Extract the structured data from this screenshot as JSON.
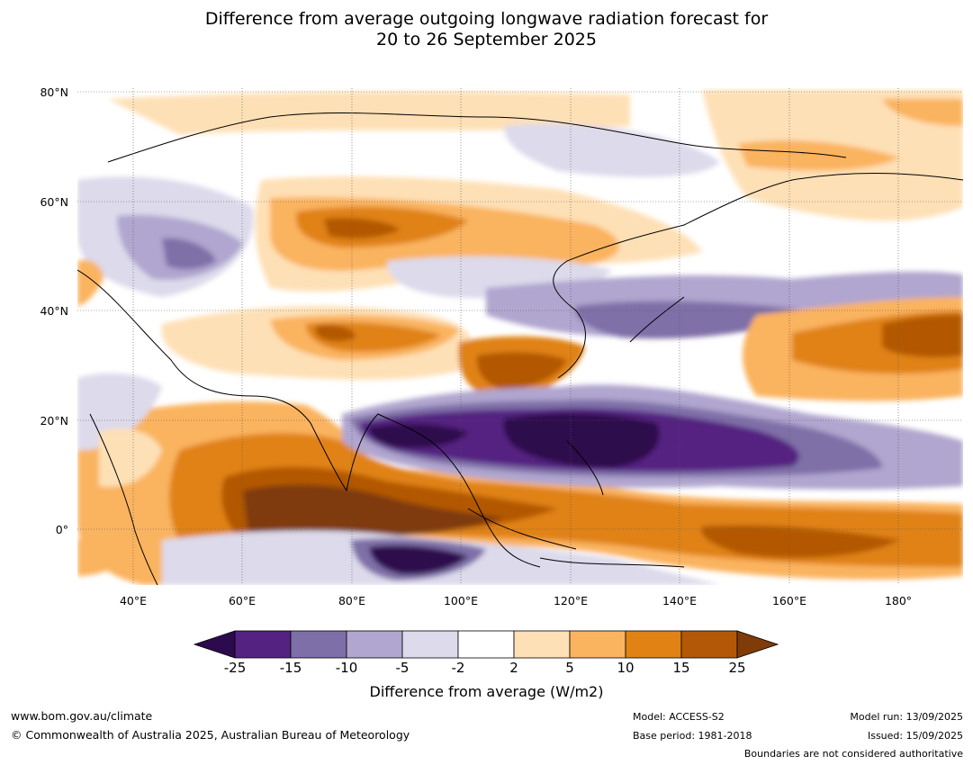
{
  "title_line1": "Difference from average outgoing longwave radiation forecast for",
  "title_line2": "20 to 26 September 2025",
  "lat_labels": [
    "80°N",
    "60°N",
    "40°N",
    "20°N",
    "0°"
  ],
  "lon_labels": [
    "40°E",
    "60°E",
    "80°E",
    "100°E",
    "120°E",
    "140°E",
    "160°E",
    "180°"
  ],
  "colorbar": {
    "ticks": [
      "-25",
      "-15",
      "-10",
      "-5",
      "-2",
      "2",
      "5",
      "10",
      "15",
      "25"
    ],
    "colors": [
      "#2d0a4e",
      "#542281",
      "#7f6fa8",
      "#b0a6cf",
      "#dcdaeb",
      "#ffffff",
      "#fee0b6",
      "#fab35f",
      "#e08214",
      "#b35806",
      "#7f3b08"
    ],
    "title": "Difference from average (W/m2)"
  },
  "footer": {
    "url": "www.bom.gov.au/climate",
    "copyright": "© Commonwealth of Australia 2025, Australian Bureau of Meteorology",
    "model": "Model: ACCESS-S2",
    "base_period": "Base period: 1981-2018",
    "model_run": "Model run: 13/09/2025",
    "issued": "Issued: 15/09/2025",
    "disclaimer": "Boundaries are not considered authoritative"
  }
}
